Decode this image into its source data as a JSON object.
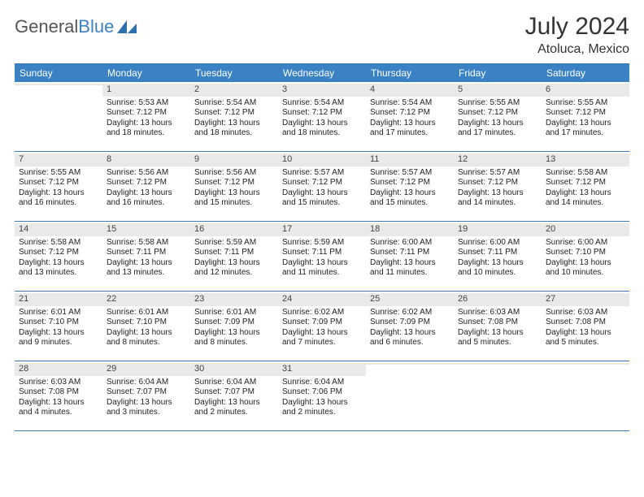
{
  "logo": {
    "text1": "General",
    "text2": "Blue"
  },
  "title": "July 2024",
  "location": "Atoluca, Mexico",
  "colors": {
    "header_bg": "#3b82c4",
    "border": "#3b7bbf",
    "daynum_bg": "#e9e9e9",
    "text": "#222222",
    "bg": "#ffffff"
  },
  "weekdays": [
    "Sunday",
    "Monday",
    "Tuesday",
    "Wednesday",
    "Thursday",
    "Friday",
    "Saturday"
  ],
  "weeks": [
    [
      {
        "day": "",
        "lines": []
      },
      {
        "day": "1",
        "lines": [
          "Sunrise: 5:53 AM",
          "Sunset: 7:12 PM",
          "Daylight: 13 hours",
          "and 18 minutes."
        ]
      },
      {
        "day": "2",
        "lines": [
          "Sunrise: 5:54 AM",
          "Sunset: 7:12 PM",
          "Daylight: 13 hours",
          "and 18 minutes."
        ]
      },
      {
        "day": "3",
        "lines": [
          "Sunrise: 5:54 AM",
          "Sunset: 7:12 PM",
          "Daylight: 13 hours",
          "and 18 minutes."
        ]
      },
      {
        "day": "4",
        "lines": [
          "Sunrise: 5:54 AM",
          "Sunset: 7:12 PM",
          "Daylight: 13 hours",
          "and 17 minutes."
        ]
      },
      {
        "day": "5",
        "lines": [
          "Sunrise: 5:55 AM",
          "Sunset: 7:12 PM",
          "Daylight: 13 hours",
          "and 17 minutes."
        ]
      },
      {
        "day": "6",
        "lines": [
          "Sunrise: 5:55 AM",
          "Sunset: 7:12 PM",
          "Daylight: 13 hours",
          "and 17 minutes."
        ]
      }
    ],
    [
      {
        "day": "7",
        "lines": [
          "Sunrise: 5:55 AM",
          "Sunset: 7:12 PM",
          "Daylight: 13 hours",
          "and 16 minutes."
        ]
      },
      {
        "day": "8",
        "lines": [
          "Sunrise: 5:56 AM",
          "Sunset: 7:12 PM",
          "Daylight: 13 hours",
          "and 16 minutes."
        ]
      },
      {
        "day": "9",
        "lines": [
          "Sunrise: 5:56 AM",
          "Sunset: 7:12 PM",
          "Daylight: 13 hours",
          "and 15 minutes."
        ]
      },
      {
        "day": "10",
        "lines": [
          "Sunrise: 5:57 AM",
          "Sunset: 7:12 PM",
          "Daylight: 13 hours",
          "and 15 minutes."
        ]
      },
      {
        "day": "11",
        "lines": [
          "Sunrise: 5:57 AM",
          "Sunset: 7:12 PM",
          "Daylight: 13 hours",
          "and 15 minutes."
        ]
      },
      {
        "day": "12",
        "lines": [
          "Sunrise: 5:57 AM",
          "Sunset: 7:12 PM",
          "Daylight: 13 hours",
          "and 14 minutes."
        ]
      },
      {
        "day": "13",
        "lines": [
          "Sunrise: 5:58 AM",
          "Sunset: 7:12 PM",
          "Daylight: 13 hours",
          "and 14 minutes."
        ]
      }
    ],
    [
      {
        "day": "14",
        "lines": [
          "Sunrise: 5:58 AM",
          "Sunset: 7:12 PM",
          "Daylight: 13 hours",
          "and 13 minutes."
        ]
      },
      {
        "day": "15",
        "lines": [
          "Sunrise: 5:58 AM",
          "Sunset: 7:11 PM",
          "Daylight: 13 hours",
          "and 13 minutes."
        ]
      },
      {
        "day": "16",
        "lines": [
          "Sunrise: 5:59 AM",
          "Sunset: 7:11 PM",
          "Daylight: 13 hours",
          "and 12 minutes."
        ]
      },
      {
        "day": "17",
        "lines": [
          "Sunrise: 5:59 AM",
          "Sunset: 7:11 PM",
          "Daylight: 13 hours",
          "and 11 minutes."
        ]
      },
      {
        "day": "18",
        "lines": [
          "Sunrise: 6:00 AM",
          "Sunset: 7:11 PM",
          "Daylight: 13 hours",
          "and 11 minutes."
        ]
      },
      {
        "day": "19",
        "lines": [
          "Sunrise: 6:00 AM",
          "Sunset: 7:11 PM",
          "Daylight: 13 hours",
          "and 10 minutes."
        ]
      },
      {
        "day": "20",
        "lines": [
          "Sunrise: 6:00 AM",
          "Sunset: 7:10 PM",
          "Daylight: 13 hours",
          "and 10 minutes."
        ]
      }
    ],
    [
      {
        "day": "21",
        "lines": [
          "Sunrise: 6:01 AM",
          "Sunset: 7:10 PM",
          "Daylight: 13 hours",
          "and 9 minutes."
        ]
      },
      {
        "day": "22",
        "lines": [
          "Sunrise: 6:01 AM",
          "Sunset: 7:10 PM",
          "Daylight: 13 hours",
          "and 8 minutes."
        ]
      },
      {
        "day": "23",
        "lines": [
          "Sunrise: 6:01 AM",
          "Sunset: 7:09 PM",
          "Daylight: 13 hours",
          "and 8 minutes."
        ]
      },
      {
        "day": "24",
        "lines": [
          "Sunrise: 6:02 AM",
          "Sunset: 7:09 PM",
          "Daylight: 13 hours",
          "and 7 minutes."
        ]
      },
      {
        "day": "25",
        "lines": [
          "Sunrise: 6:02 AM",
          "Sunset: 7:09 PM",
          "Daylight: 13 hours",
          "and 6 minutes."
        ]
      },
      {
        "day": "26",
        "lines": [
          "Sunrise: 6:03 AM",
          "Sunset: 7:08 PM",
          "Daylight: 13 hours",
          "and 5 minutes."
        ]
      },
      {
        "day": "27",
        "lines": [
          "Sunrise: 6:03 AM",
          "Sunset: 7:08 PM",
          "Daylight: 13 hours",
          "and 5 minutes."
        ]
      }
    ],
    [
      {
        "day": "28",
        "lines": [
          "Sunrise: 6:03 AM",
          "Sunset: 7:08 PM",
          "Daylight: 13 hours",
          "and 4 minutes."
        ]
      },
      {
        "day": "29",
        "lines": [
          "Sunrise: 6:04 AM",
          "Sunset: 7:07 PM",
          "Daylight: 13 hours",
          "and 3 minutes."
        ]
      },
      {
        "day": "30",
        "lines": [
          "Sunrise: 6:04 AM",
          "Sunset: 7:07 PM",
          "Daylight: 13 hours",
          "and 2 minutes."
        ]
      },
      {
        "day": "31",
        "lines": [
          "Sunrise: 6:04 AM",
          "Sunset: 7:06 PM",
          "Daylight: 13 hours",
          "and 2 minutes."
        ]
      },
      {
        "day": "",
        "lines": []
      },
      {
        "day": "",
        "lines": []
      },
      {
        "day": "",
        "lines": []
      }
    ]
  ]
}
